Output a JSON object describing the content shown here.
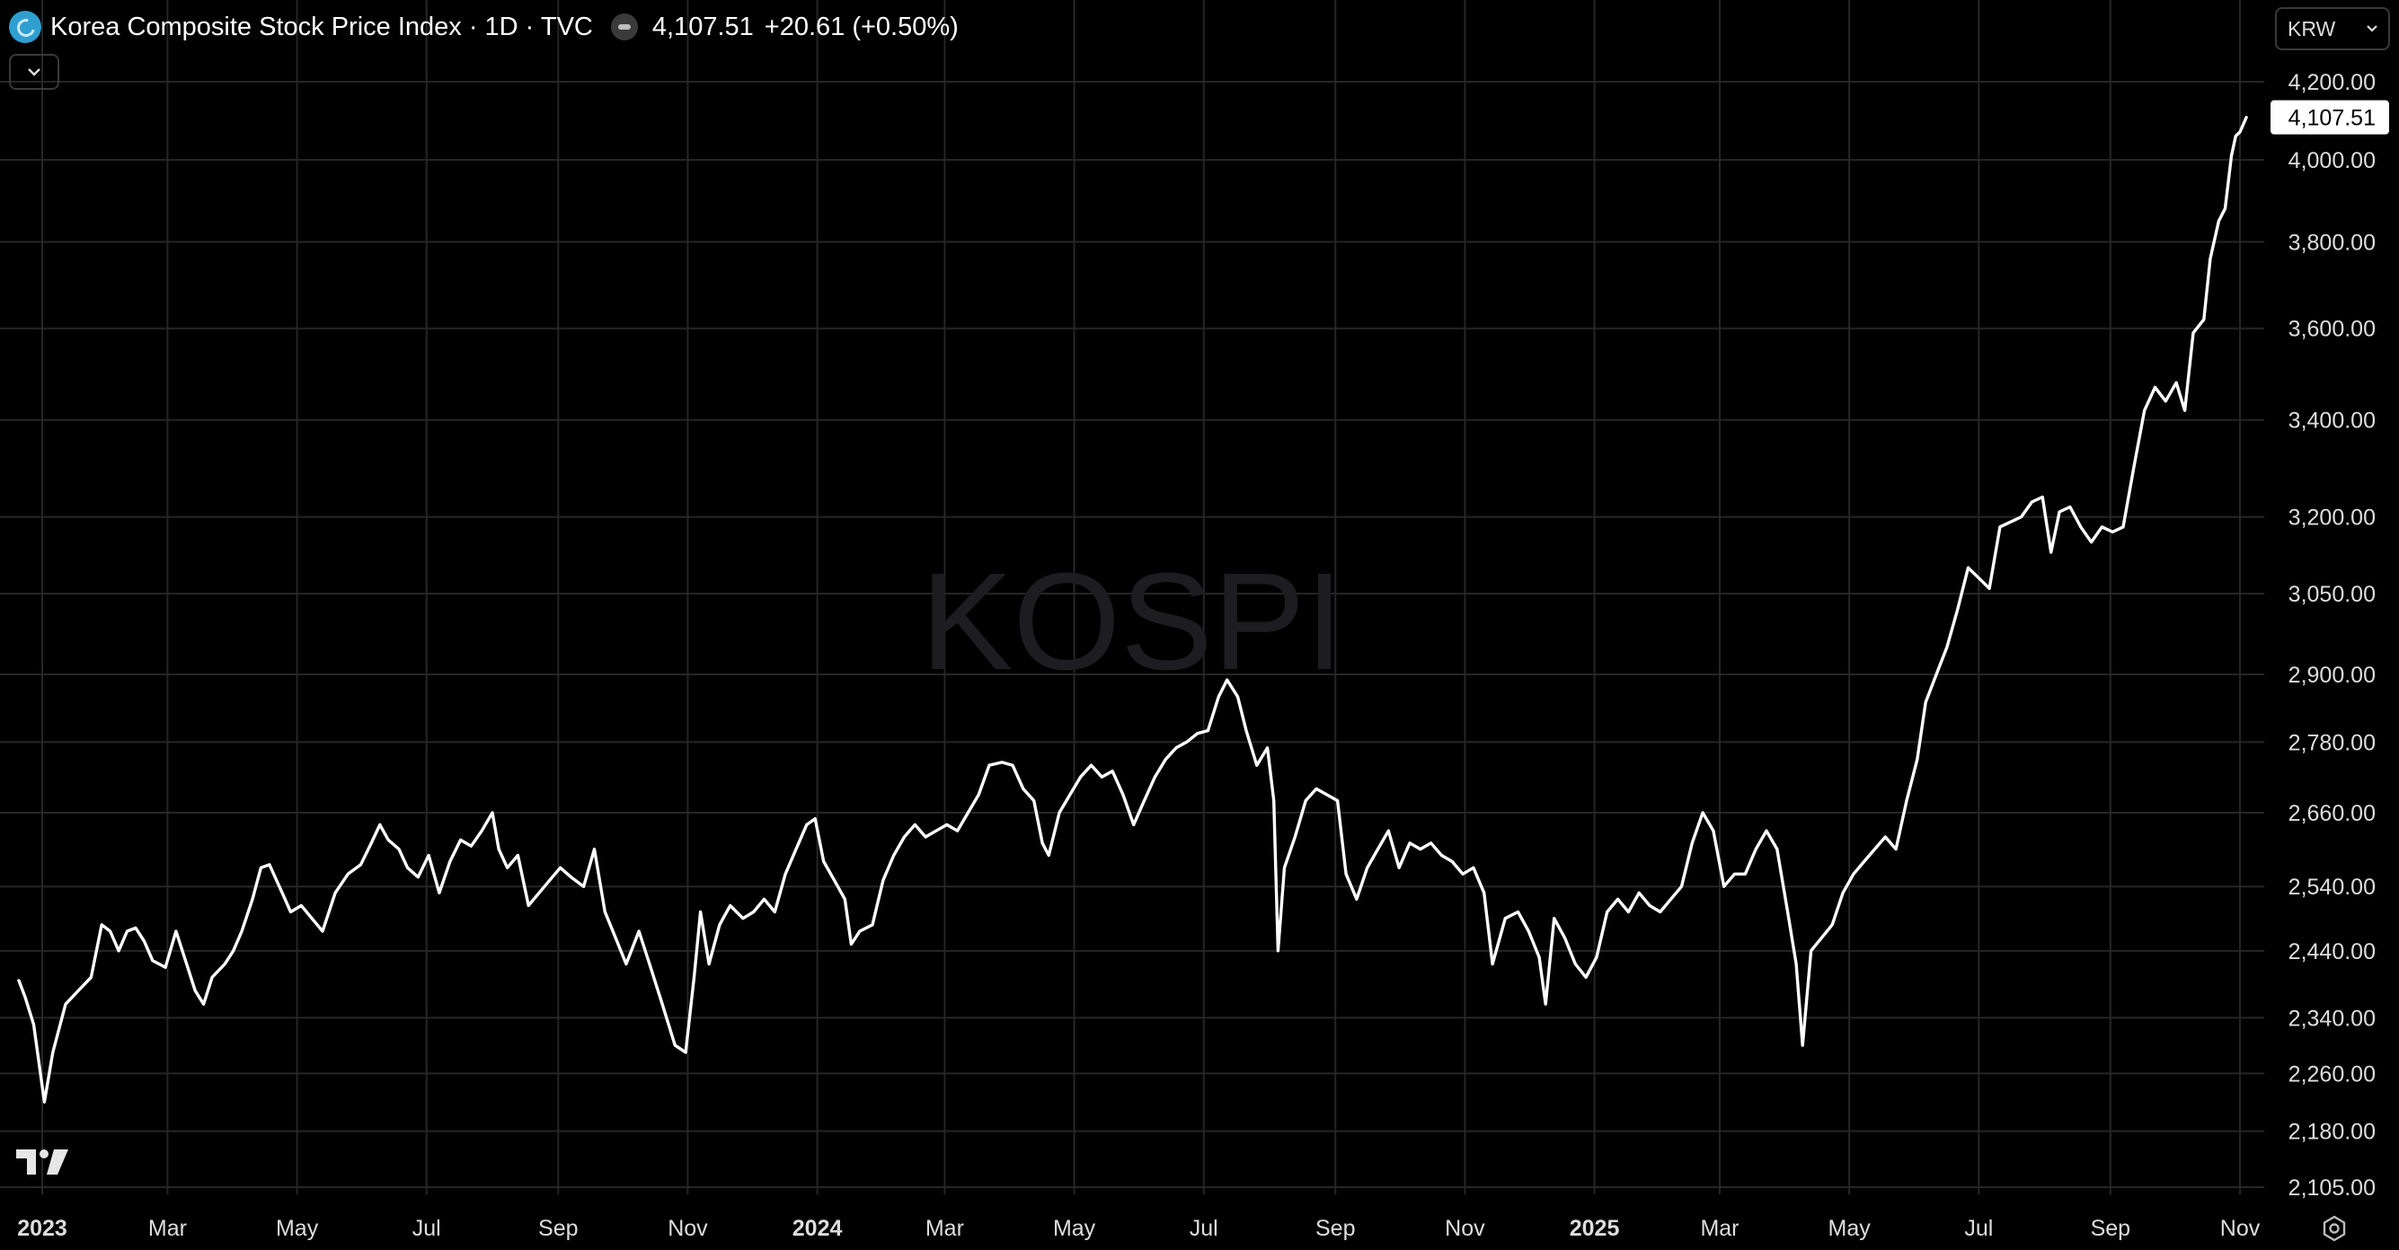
{
  "legend": {
    "title": "Korea Composite Stock Price Index · 1D · TVC",
    "price": "4,107.51",
    "change": "+20.61 (+0.50%)"
  },
  "currency": {
    "label": "KRW"
  },
  "watermark": "KOSPI",
  "colors": {
    "background": "#000000",
    "line": "#ffffff",
    "grid": "#262626",
    "watermark": "#1c1c21"
  },
  "icons": {
    "symbol": "kospi-logo-icon",
    "status": "market-status-icon",
    "collapse": "chevron-down-icon",
    "currency": "chevron-down-icon",
    "brand": "tradingview-logo-icon",
    "settings": "gear-icon"
  },
  "chart_data": {
    "type": "line",
    "title": "",
    "xlabel": "",
    "ylabel": "",
    "y_scale": "log",
    "ylim": [
      2080,
      4300
    ],
    "xlim": [
      "2022-12-21",
      "2025-11-05"
    ],
    "grid": true,
    "y_ticks": [
      2105,
      2180,
      2260,
      2340,
      2440,
      2540,
      2660,
      2780,
      2900,
      3050,
      3200,
      3400,
      3600,
      3800,
      4000,
      4200
    ],
    "y_tick_labels": [
      "2,105.00",
      "2,180.00",
      "2,260.00",
      "2,340.00",
      "2,440.00",
      "2,540.00",
      "2,660.00",
      "2,780.00",
      "2,900.00",
      "3,050.00",
      "3,200.00",
      "3,400.00",
      "3,600.00",
      "3,800.00",
      "4,000.00",
      "4,200.00"
    ],
    "x_ticks": [
      {
        "date": "2023-01-01",
        "label": "2023",
        "bold": true
      },
      {
        "date": "2023-03-01",
        "label": "Mar"
      },
      {
        "date": "2023-05-01",
        "label": "May"
      },
      {
        "date": "2023-07-01",
        "label": "Jul"
      },
      {
        "date": "2023-09-01",
        "label": "Sep"
      },
      {
        "date": "2023-11-01",
        "label": "Nov"
      },
      {
        "date": "2024-01-01",
        "label": "2024",
        "bold": true
      },
      {
        "date": "2024-03-01",
        "label": "Mar"
      },
      {
        "date": "2024-05-01",
        "label": "May"
      },
      {
        "date": "2024-07-01",
        "label": "Jul"
      },
      {
        "date": "2024-09-01",
        "label": "Sep"
      },
      {
        "date": "2024-11-01",
        "label": "Nov"
      },
      {
        "date": "2025-01-01",
        "label": "2025",
        "bold": true
      },
      {
        "date": "2025-03-01",
        "label": "Mar"
      },
      {
        "date": "2025-05-01",
        "label": "May"
      },
      {
        "date": "2025-07-01",
        "label": "Jul"
      },
      {
        "date": "2025-09-01",
        "label": "Sep"
      },
      {
        "date": "2025-11-01",
        "label": "Nov"
      }
    ],
    "last_value_label": "4,107.51",
    "series": [
      {
        "name": "",
        "points": [
          [
            "2022-12-21",
            2395
          ],
          [
            "2022-12-24",
            2370
          ],
          [
            "2022-12-28",
            2330
          ],
          [
            "2023-01-02",
            2220
          ],
          [
            "2023-01-06",
            2290
          ],
          [
            "2023-01-12",
            2360
          ],
          [
            "2023-01-18",
            2380
          ],
          [
            "2023-01-24",
            2400
          ],
          [
            "2023-01-29",
            2480
          ],
          [
            "2023-02-02",
            2470
          ],
          [
            "2023-02-06",
            2440
          ],
          [
            "2023-02-10",
            2470
          ],
          [
            "2023-02-14",
            2475
          ],
          [
            "2023-02-18",
            2455
          ],
          [
            "2023-02-22",
            2425
          ],
          [
            "2023-02-28",
            2415
          ],
          [
            "2023-03-05",
            2470
          ],
          [
            "2023-03-10",
            2420
          ],
          [
            "2023-03-14",
            2380
          ],
          [
            "2023-03-18",
            2360
          ],
          [
            "2023-03-22",
            2400
          ],
          [
            "2023-03-28",
            2420
          ],
          [
            "2023-04-01",
            2440
          ],
          [
            "2023-04-05",
            2470
          ],
          [
            "2023-04-10",
            2520
          ],
          [
            "2023-04-14",
            2570
          ],
          [
            "2023-04-18",
            2575
          ],
          [
            "2023-04-24",
            2530
          ],
          [
            "2023-04-28",
            2500
          ],
          [
            "2023-05-03",
            2510
          ],
          [
            "2023-05-08",
            2490
          ],
          [
            "2023-05-13",
            2470
          ],
          [
            "2023-05-19",
            2530
          ],
          [
            "2023-05-25",
            2560
          ],
          [
            "2023-05-31",
            2575
          ],
          [
            "2023-06-05",
            2610
          ],
          [
            "2023-06-09",
            2640
          ],
          [
            "2023-06-13",
            2615
          ],
          [
            "2023-06-18",
            2600
          ],
          [
            "2023-06-22",
            2570
          ],
          [
            "2023-06-27",
            2555
          ],
          [
            "2023-07-02",
            2590
          ],
          [
            "2023-07-07",
            2530
          ],
          [
            "2023-07-12",
            2580
          ],
          [
            "2023-07-17",
            2615
          ],
          [
            "2023-07-22",
            2605
          ],
          [
            "2023-07-27",
            2630
          ],
          [
            "2023-08-01",
            2660
          ],
          [
            "2023-08-04",
            2600
          ],
          [
            "2023-08-08",
            2570
          ],
          [
            "2023-08-13",
            2590
          ],
          [
            "2023-08-18",
            2510
          ],
          [
            "2023-08-23",
            2530
          ],
          [
            "2023-08-28",
            2550
          ],
          [
            "2023-09-02",
            2570
          ],
          [
            "2023-09-07",
            2555
          ],
          [
            "2023-09-13",
            2540
          ],
          [
            "2023-09-18",
            2600
          ],
          [
            "2023-09-23",
            2500
          ],
          [
            "2023-09-28",
            2460
          ],
          [
            "2023-10-03",
            2420
          ],
          [
            "2023-10-09",
            2470
          ],
          [
            "2023-10-14",
            2420
          ],
          [
            "2023-10-20",
            2360
          ],
          [
            "2023-10-26",
            2300
          ],
          [
            "2023-10-31",
            2290
          ],
          [
            "2023-11-04",
            2400
          ],
          [
            "2023-11-07",
            2500
          ],
          [
            "2023-11-11",
            2420
          ],
          [
            "2023-11-16",
            2480
          ],
          [
            "2023-11-21",
            2510
          ],
          [
            "2023-11-27",
            2490
          ],
          [
            "2023-12-02",
            2500
          ],
          [
            "2023-12-07",
            2520
          ],
          [
            "2023-12-12",
            2500
          ],
          [
            "2023-12-17",
            2560
          ],
          [
            "2023-12-22",
            2600
          ],
          [
            "2023-12-27",
            2640
          ],
          [
            "2023-12-31",
            2650
          ],
          [
            "2024-01-04",
            2580
          ],
          [
            "2024-01-09",
            2550
          ],
          [
            "2024-01-14",
            2520
          ],
          [
            "2024-01-17",
            2450
          ],
          [
            "2024-01-21",
            2470
          ],
          [
            "2024-01-27",
            2480
          ],
          [
            "2024-02-01",
            2550
          ],
          [
            "2024-02-06",
            2590
          ],
          [
            "2024-02-11",
            2620
          ],
          [
            "2024-02-16",
            2640
          ],
          [
            "2024-02-21",
            2620
          ],
          [
            "2024-02-26",
            2630
          ],
          [
            "2024-03-02",
            2640
          ],
          [
            "2024-03-07",
            2630
          ],
          [
            "2024-03-12",
            2660
          ],
          [
            "2024-03-17",
            2690
          ],
          [
            "2024-03-22",
            2740
          ],
          [
            "2024-03-28",
            2745
          ],
          [
            "2024-04-02",
            2740
          ],
          [
            "2024-04-07",
            2700
          ],
          [
            "2024-04-12",
            2680
          ],
          [
            "2024-04-16",
            2610
          ],
          [
            "2024-04-19",
            2590
          ],
          [
            "2024-04-24",
            2660
          ],
          [
            "2024-04-29",
            2690
          ],
          [
            "2024-05-04",
            2720
          ],
          [
            "2024-05-09",
            2740
          ],
          [
            "2024-05-14",
            2720
          ],
          [
            "2024-05-19",
            2730
          ],
          [
            "2024-05-24",
            2690
          ],
          [
            "2024-05-29",
            2640
          ],
          [
            "2024-06-03",
            2680
          ],
          [
            "2024-06-08",
            2720
          ],
          [
            "2024-06-13",
            2750
          ],
          [
            "2024-06-18",
            2770
          ],
          [
            "2024-06-23",
            2780
          ],
          [
            "2024-06-28",
            2795
          ],
          [
            "2024-07-03",
            2800
          ],
          [
            "2024-07-08",
            2860
          ],
          [
            "2024-07-12",
            2890
          ],
          [
            "2024-07-17",
            2860
          ],
          [
            "2024-07-21",
            2800
          ],
          [
            "2024-07-26",
            2740
          ],
          [
            "2024-07-31",
            2770
          ],
          [
            "2024-08-03",
            2680
          ],
          [
            "2024-08-05",
            2440
          ],
          [
            "2024-08-08",
            2570
          ],
          [
            "2024-08-13",
            2620
          ],
          [
            "2024-08-18",
            2680
          ],
          [
            "2024-08-23",
            2700
          ],
          [
            "2024-08-28",
            2690
          ],
          [
            "2024-09-02",
            2680
          ],
          [
            "2024-09-06",
            2560
          ],
          [
            "2024-09-11",
            2520
          ],
          [
            "2024-09-16",
            2570
          ],
          [
            "2024-09-21",
            2600
          ],
          [
            "2024-09-26",
            2630
          ],
          [
            "2024-10-01",
            2570
          ],
          [
            "2024-10-06",
            2610
          ],
          [
            "2024-10-11",
            2600
          ],
          [
            "2024-10-16",
            2610
          ],
          [
            "2024-10-21",
            2590
          ],
          [
            "2024-10-26",
            2580
          ],
          [
            "2024-10-31",
            2560
          ],
          [
            "2024-11-05",
            2570
          ],
          [
            "2024-11-10",
            2530
          ],
          [
            "2024-11-14",
            2420
          ],
          [
            "2024-11-20",
            2490
          ],
          [
            "2024-11-26",
            2500
          ],
          [
            "2024-12-01",
            2470
          ],
          [
            "2024-12-06",
            2430
          ],
          [
            "2024-12-09",
            2360
          ],
          [
            "2024-12-13",
            2490
          ],
          [
            "2024-12-18",
            2460
          ],
          [
            "2024-12-23",
            2420
          ],
          [
            "2024-12-28",
            2400
          ],
          [
            "2025-01-02",
            2430
          ],
          [
            "2025-01-07",
            2500
          ],
          [
            "2025-01-12",
            2520
          ],
          [
            "2025-01-17",
            2500
          ],
          [
            "2025-01-22",
            2530
          ],
          [
            "2025-01-27",
            2510
          ],
          [
            "2025-02-01",
            2500
          ],
          [
            "2025-02-06",
            2520
          ],
          [
            "2025-02-11",
            2540
          ],
          [
            "2025-02-16",
            2610
          ],
          [
            "2025-02-21",
            2660
          ],
          [
            "2025-02-26",
            2630
          ],
          [
            "2025-03-03",
            2540
          ],
          [
            "2025-03-08",
            2560
          ],
          [
            "2025-03-13",
            2560
          ],
          [
            "2025-03-18",
            2600
          ],
          [
            "2025-03-23",
            2630
          ],
          [
            "2025-03-28",
            2600
          ],
          [
            "2025-04-02",
            2500
          ],
          [
            "2025-04-06",
            2420
          ],
          [
            "2025-04-09",
            2300
          ],
          [
            "2025-04-13",
            2440
          ],
          [
            "2025-04-18",
            2460
          ],
          [
            "2025-04-23",
            2480
          ],
          [
            "2025-04-28",
            2530
          ],
          [
            "2025-05-03",
            2560
          ],
          [
            "2025-05-08",
            2580
          ],
          [
            "2025-05-13",
            2600
          ],
          [
            "2025-05-18",
            2620
          ],
          [
            "2025-05-23",
            2600
          ],
          [
            "2025-05-28",
            2680
          ],
          [
            "2025-06-02",
            2750
          ],
          [
            "2025-06-06",
            2850
          ],
          [
            "2025-06-11",
            2900
          ],
          [
            "2025-06-16",
            2950
          ],
          [
            "2025-06-21",
            3020
          ],
          [
            "2025-06-26",
            3100
          ],
          [
            "2025-07-01",
            3080
          ],
          [
            "2025-07-06",
            3060
          ],
          [
            "2025-07-11",
            3180
          ],
          [
            "2025-07-16",
            3190
          ],
          [
            "2025-07-21",
            3200
          ],
          [
            "2025-07-26",
            3230
          ],
          [
            "2025-07-31",
            3240
          ],
          [
            "2025-08-04",
            3130
          ],
          [
            "2025-08-08",
            3210
          ],
          [
            "2025-08-13",
            3220
          ],
          [
            "2025-08-18",
            3180
          ],
          [
            "2025-08-23",
            3150
          ],
          [
            "2025-08-28",
            3180
          ],
          [
            "2025-09-02",
            3170
          ],
          [
            "2025-09-07",
            3180
          ],
          [
            "2025-09-12",
            3300
          ],
          [
            "2025-09-17",
            3420
          ],
          [
            "2025-09-22",
            3470
          ],
          [
            "2025-09-27",
            3440
          ],
          [
            "2025-10-02",
            3480
          ],
          [
            "2025-10-06",
            3420
          ],
          [
            "2025-10-10",
            3590
          ],
          [
            "2025-10-15",
            3620
          ],
          [
            "2025-10-18",
            3760
          ],
          [
            "2025-10-22",
            3850
          ],
          [
            "2025-10-25",
            3880
          ],
          [
            "2025-10-28",
            4010
          ],
          [
            "2025-10-30",
            4060
          ],
          [
            "2025-11-01",
            4070
          ],
          [
            "2025-11-04",
            4107.51
          ]
        ]
      }
    ]
  }
}
